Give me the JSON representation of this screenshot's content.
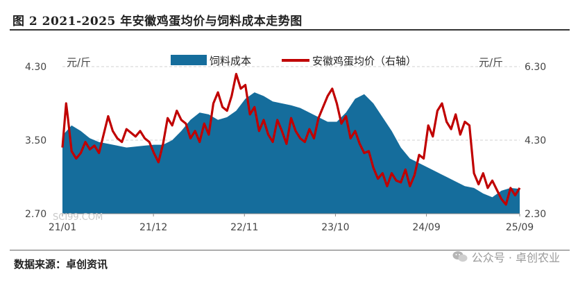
{
  "title": "图 2 2021-2025 年安徽鸡蛋均价与饲料成本走势图",
  "source": "数据来源：卓创资讯",
  "watermark": "SCI99.COM",
  "wechat_label": "公众号 · 卓创农业",
  "chart_data": {
    "type": "area+line",
    "left_unit": "元/斤",
    "right_unit": "元/斤",
    "left_axis": {
      "min": 2.7,
      "max": 4.3,
      "ticks": [
        "4.30",
        "3.50",
        "2.70"
      ]
    },
    "right_axis": {
      "min": 2.3,
      "max": 6.3,
      "ticks": [
        "6.30",
        "4.30",
        "2.30"
      ]
    },
    "x_ticks": [
      "21/01",
      "21/12",
      "22/11",
      "23/10",
      "24/09",
      "25/09"
    ],
    "x_tick_t": [
      0,
      0.199,
      0.398,
      0.597,
      0.796,
      1.0
    ],
    "colors": {
      "feed": "#156d9c",
      "egg": "#c00000",
      "grid": "#d0d0d0"
    },
    "series": [
      {
        "name": "饲料成本",
        "axis": "left",
        "t": [
          0,
          0.02,
          0.04,
          0.06,
          0.08,
          0.1,
          0.12,
          0.14,
          0.16,
          0.18,
          0.2,
          0.22,
          0.24,
          0.26,
          0.28,
          0.3,
          0.32,
          0.34,
          0.36,
          0.38,
          0.4,
          0.42,
          0.44,
          0.46,
          0.48,
          0.5,
          0.52,
          0.54,
          0.56,
          0.58,
          0.6,
          0.62,
          0.64,
          0.66,
          0.68,
          0.7,
          0.72,
          0.74,
          0.76,
          0.78,
          0.8,
          0.82,
          0.84,
          0.86,
          0.88,
          0.9,
          0.92,
          0.94,
          0.96,
          0.98,
          1.0
        ],
        "values": [
          3.55,
          3.66,
          3.6,
          3.52,
          3.48,
          3.46,
          3.44,
          3.42,
          3.43,
          3.44,
          3.45,
          3.45,
          3.5,
          3.6,
          3.72,
          3.8,
          3.78,
          3.72,
          3.75,
          3.82,
          3.95,
          4.02,
          3.98,
          3.92,
          3.9,
          3.88,
          3.85,
          3.8,
          3.75,
          3.7,
          3.7,
          3.8,
          3.95,
          4.0,
          3.9,
          3.75,
          3.6,
          3.42,
          3.3,
          3.25,
          3.2,
          3.15,
          3.1,
          3.05,
          3.0,
          2.98,
          2.92,
          2.88,
          2.95,
          2.98,
          2.97
        ]
      },
      {
        "name": "安徽鸡蛋均价（右轴）",
        "axis": "right",
        "t": [
          0,
          0.008,
          0.012,
          0.02,
          0.03,
          0.04,
          0.05,
          0.06,
          0.07,
          0.08,
          0.09,
          0.1,
          0.11,
          0.12,
          0.13,
          0.14,
          0.15,
          0.16,
          0.17,
          0.18,
          0.19,
          0.2,
          0.21,
          0.22,
          0.23,
          0.24,
          0.25,
          0.26,
          0.27,
          0.28,
          0.29,
          0.3,
          0.31,
          0.32,
          0.33,
          0.34,
          0.35,
          0.36,
          0.37,
          0.38,
          0.39,
          0.4,
          0.41,
          0.42,
          0.43,
          0.44,
          0.45,
          0.46,
          0.47,
          0.48,
          0.49,
          0.5,
          0.51,
          0.52,
          0.53,
          0.54,
          0.55,
          0.56,
          0.57,
          0.58,
          0.59,
          0.6,
          0.61,
          0.62,
          0.63,
          0.64,
          0.65,
          0.66,
          0.67,
          0.68,
          0.69,
          0.7,
          0.71,
          0.72,
          0.73,
          0.74,
          0.75,
          0.76,
          0.77,
          0.78,
          0.79,
          0.8,
          0.81,
          0.82,
          0.83,
          0.84,
          0.85,
          0.86,
          0.87,
          0.88,
          0.89,
          0.9,
          0.91,
          0.92,
          0.93,
          0.94,
          0.95,
          0.96,
          0.97,
          0.98,
          0.99,
          1.0
        ],
        "values": [
          4.1,
          5.3,
          4.9,
          4.0,
          3.8,
          3.95,
          4.25,
          4.05,
          4.15,
          3.95,
          4.45,
          4.95,
          4.55,
          4.35,
          4.25,
          4.6,
          4.5,
          4.4,
          4.55,
          4.35,
          4.25,
          3.95,
          3.7,
          4.2,
          4.9,
          4.7,
          5.1,
          4.85,
          4.75,
          4.35,
          4.55,
          4.25,
          4.75,
          4.45,
          5.3,
          5.6,
          5.2,
          5.1,
          5.5,
          6.1,
          5.7,
          5.8,
          5.0,
          5.2,
          4.55,
          4.85,
          4.45,
          4.25,
          4.85,
          4.55,
          4.2,
          4.9,
          4.55,
          4.35,
          4.25,
          4.6,
          4.35,
          4.9,
          5.2,
          5.5,
          5.7,
          5.3,
          4.75,
          4.95,
          4.35,
          4.55,
          4.2,
          3.95,
          4.0,
          3.55,
          3.25,
          3.4,
          3.05,
          3.4,
          3.2,
          3.15,
          3.5,
          3.05,
          3.35,
          3.9,
          3.8,
          4.7,
          4.4,
          5.1,
          5.3,
          4.8,
          4.6,
          5.0,
          4.45,
          4.8,
          4.7,
          3.4,
          3.1,
          3.4,
          3.0,
          3.2,
          2.95,
          2.7,
          2.55,
          3.0,
          2.8,
          3.0
        ]
      }
    ]
  }
}
